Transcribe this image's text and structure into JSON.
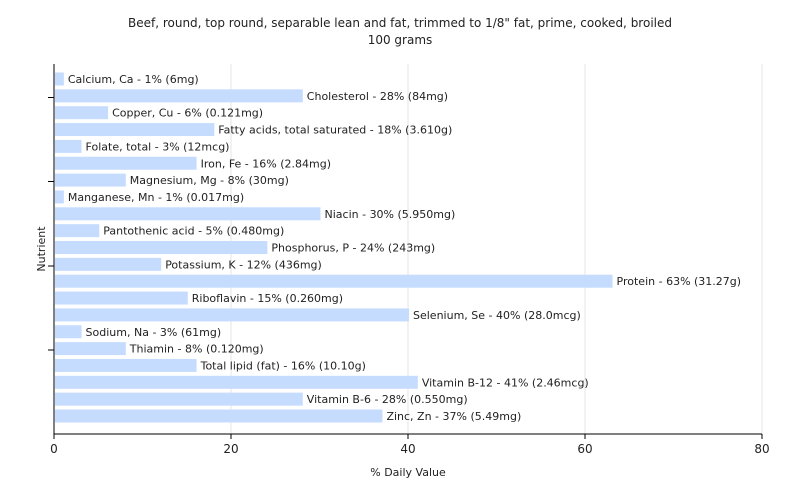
{
  "chart_data": {
    "type": "bar",
    "orientation": "horizontal",
    "title": "Beef, round, top round, separable lean and fat, trimmed to 1/8\" fat, prime, cooked, broiled",
    "subtitle": "100 grams",
    "xlabel": "% Daily Value",
    "ylabel": "Nutrient",
    "xlim": [
      0,
      80
    ],
    "xticks": [
      0,
      20,
      40,
      60,
      80
    ],
    "grid": true,
    "bar_color": "#c6dcff",
    "categories": [
      "Calcium, Ca",
      "Cholesterol",
      "Copper, Cu",
      "Fatty acids, total saturated",
      "Folate, total",
      "Iron, Fe",
      "Magnesium, Mg",
      "Manganese, Mn",
      "Niacin",
      "Pantothenic acid",
      "Phosphorus, P",
      "Potassium, K",
      "Protein",
      "Riboflavin",
      "Selenium, Se",
      "Sodium, Na",
      "Thiamin",
      "Total lipid (fat)",
      "Vitamin B-12",
      "Vitamin B-6",
      "Zinc, Zn"
    ],
    "values": [
      1,
      28,
      6,
      18,
      3,
      16,
      8,
      1,
      30,
      5,
      24,
      12,
      63,
      15,
      40,
      3,
      8,
      16,
      41,
      28,
      37
    ],
    "labels": [
      "Calcium, Ca - 1% (6mg)",
      "Cholesterol - 28% (84mg)",
      "Copper, Cu - 6% (0.121mg)",
      "Fatty acids, total saturated - 18% (3.610g)",
      "Folate, total - 3% (12mcg)",
      "Iron, Fe - 16% (2.84mg)",
      "Magnesium, Mg - 8% (30mg)",
      "Manganese, Mn - 1% (0.017mg)",
      "Niacin - 30% (5.950mg)",
      "Pantothenic acid - 5% (0.480mg)",
      "Phosphorus, P - 24% (243mg)",
      "Potassium, K - 12% (436mg)",
      "Protein - 63% (31.27g)",
      "Riboflavin - 15% (0.260mg)",
      "Selenium, Se - 40% (28.0mcg)",
      "Sodium, Na - 3% (61mg)",
      "Thiamin - 8% (0.120mg)",
      "Total lipid (fat) - 16% (10.10g)",
      "Vitamin B-12 - 41% (2.46mcg)",
      "Vitamin B-6 - 28% (0.550mg)",
      "Zinc, Zn - 37% (5.49mg)"
    ]
  }
}
